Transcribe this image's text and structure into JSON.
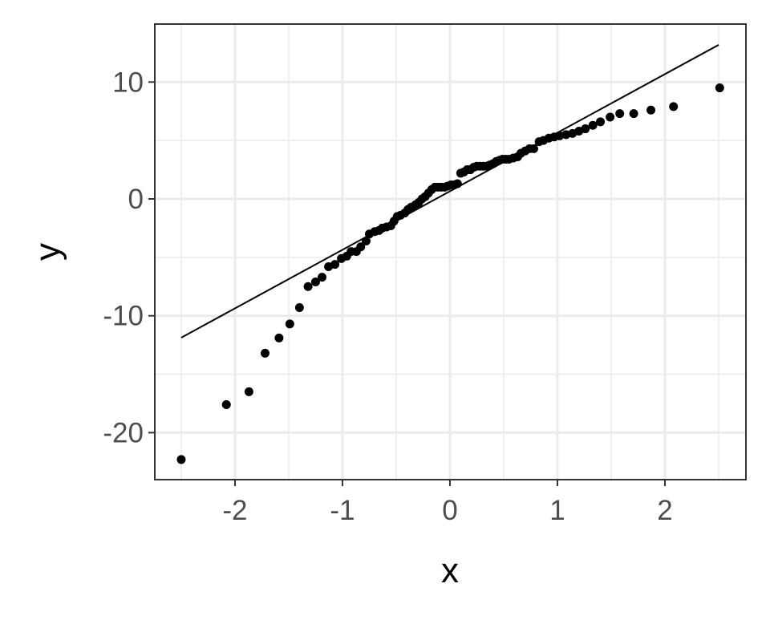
{
  "chart_data": {
    "type": "scatter",
    "xlabel": "x",
    "ylabel": "y",
    "xlim": [
      -2.746,
      2.754
    ],
    "ylim": [
      -24.02,
      14.96
    ],
    "xticks": [
      -2,
      -1,
      0,
      1,
      2
    ],
    "yticks": [
      -20,
      -10,
      0,
      10
    ],
    "x_minor_grid": [
      -2.5,
      -1.5,
      -0.5,
      0.5,
      1.5,
      2.5
    ],
    "y_minor_grid": [
      -15,
      -5,
      5
    ],
    "grid": true,
    "color": "#000000",
    "x": [
      -2.5,
      -2.08,
      -1.87,
      -1.72,
      -1.59,
      -1.49,
      -1.4,
      -1.32,
      -1.25,
      -1.19,
      -1.13,
      -1.07,
      -1.01,
      -0.96,
      -0.92,
      -0.87,
      -0.83,
      -0.78,
      -0.75,
      -0.7,
      -0.66,
      -0.63,
      -0.59,
      -0.55,
      -0.52,
      -0.49,
      -0.46,
      -0.42,
      -0.39,
      -0.36,
      -0.32,
      -0.29,
      -0.26,
      -0.23,
      -0.2,
      -0.17,
      -0.14,
      -0.11,
      -0.08,
      -0.05,
      -0.02,
      0.01,
      0.04,
      0.07,
      0.1,
      0.13,
      0.16,
      0.19,
      0.22,
      0.25,
      0.28,
      0.31,
      0.34,
      0.37,
      0.4,
      0.43,
      0.46,
      0.49,
      0.52,
      0.55,
      0.59,
      0.63,
      0.66,
      0.7,
      0.74,
      0.78,
      0.83,
      0.87,
      0.92,
      0.97,
      1.02,
      1.08,
      1.14,
      1.2,
      1.26,
      1.33,
      1.4,
      1.49,
      1.58,
      1.71,
      1.87,
      2.08,
      2.51
    ],
    "values": [
      -22.3,
      -17.6,
      -16.5,
      -13.2,
      -11.9,
      -10.7,
      -9.3,
      -7.5,
      -7.1,
      -6.7,
      -5.8,
      -5.6,
      -5.1,
      -4.9,
      -4.5,
      -4.5,
      -4.1,
      -3.6,
      -3.0,
      -2.8,
      -2.7,
      -2.5,
      -2.4,
      -2.3,
      -1.9,
      -1.5,
      -1.4,
      -1.2,
      -0.9,
      -0.7,
      -0.5,
      -0.3,
      0.0,
      0.2,
      0.5,
      0.8,
      1.0,
      1.0,
      1.0,
      1.0,
      1.1,
      1.2,
      1.2,
      1.3,
      2.2,
      2.3,
      2.5,
      2.5,
      2.7,
      2.8,
      2.8,
      2.8,
      2.8,
      2.9,
      3.0,
      3.2,
      3.3,
      3.4,
      3.4,
      3.4,
      3.5,
      3.6,
      3.9,
      4.1,
      4.3,
      4.3,
      4.9,
      5.0,
      5.2,
      5.3,
      5.4,
      5.5,
      5.6,
      5.8,
      6.0,
      6.3,
      6.6,
      7.0,
      7.3,
      7.3,
      7.6,
      7.9,
      9.5
    ],
    "line": {
      "x": [
        -2.5,
        2.5
      ],
      "y": [
        -11.87,
        13.18
      ],
      "color": "#000000"
    }
  }
}
